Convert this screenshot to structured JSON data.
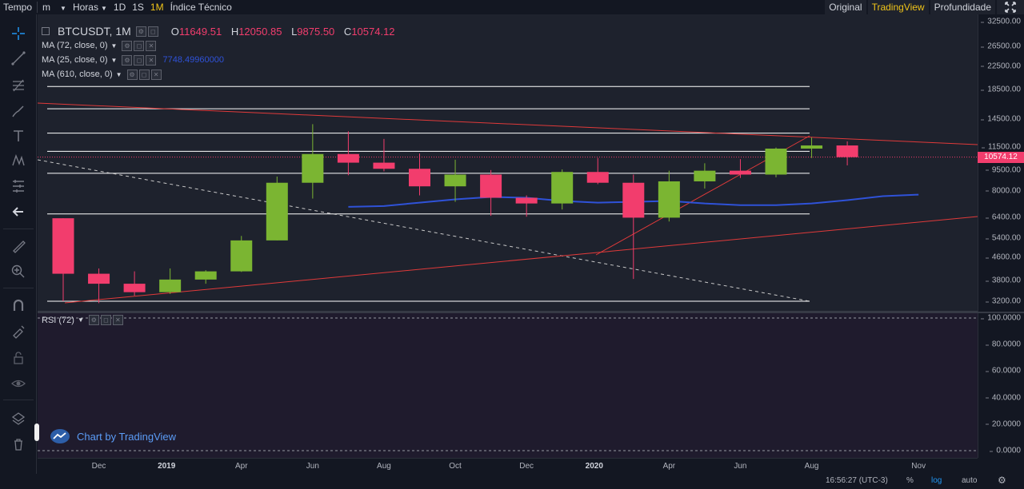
{
  "topbar": {
    "tempo_label": "Tempo",
    "minutes_label": "m",
    "hours_label": "Horas",
    "interval_1d": "1D",
    "interval_1s": "1S",
    "interval_1m": "1M",
    "indicator_label": "Índice Técnico",
    "view_original": "Original",
    "view_tradingview": "TradingView",
    "view_depth": "Profundidade",
    "active_interval": "1M",
    "active_view": "TradingView"
  },
  "sidebar": {
    "tools": [
      "crosshair-icon",
      "trend-line-icon",
      "fib-tools-icon",
      "brush-icon",
      "text-icon",
      "pattern-icon",
      "measure-icon",
      "back-arrow-icon",
      "ruler-icon",
      "zoom-in-icon",
      "magnet-icon",
      "lock-drawing-icon",
      "unlock-icon",
      "eye-icon",
      "layers-icon",
      "trash-icon"
    ]
  },
  "legend": {
    "symbol": "BTCUSDT, 1M",
    "open_label": "O",
    "open_value": "11649.51",
    "high_label": "H",
    "high_value": "12050.85",
    "low_label": "L",
    "low_value": "9875.50",
    "close_label": "C",
    "close_value": "10574.12",
    "ma1": "MA (72, close, 0)",
    "ma2": "MA (25, close, 0)",
    "ma2_value": "7748.49960000",
    "ma3": "MA (610, close, 0)",
    "rsi": "RSI (72)"
  },
  "price_scale": {
    "ticks": [
      "32500.00",
      "26500.00",
      "22500.00",
      "18500.00",
      "14500.00",
      "11500.00",
      "9500.00",
      "8000.00",
      "6400.00",
      "5400.00",
      "4600.00",
      "3800.00",
      "3200.00"
    ],
    "last_price": "10574.12",
    "log_scale": true
  },
  "rsi_scale": {
    "ticks": [
      "100.0000",
      "80.0000",
      "60.0000",
      "40.0000",
      "20.0000",
      "0.0000"
    ]
  },
  "time_axis": {
    "labels": [
      {
        "text": "Dec",
        "year": false
      },
      {
        "text": "2019",
        "year": true
      },
      {
        "text": "Apr",
        "year": false
      },
      {
        "text": "Jun",
        "year": false
      },
      {
        "text": "Aug",
        "year": false
      },
      {
        "text": "Oct",
        "year": false
      },
      {
        "text": "Dec",
        "year": false
      },
      {
        "text": "2020",
        "year": true
      },
      {
        "text": "Apr",
        "year": false
      },
      {
        "text": "Jun",
        "year": false
      },
      {
        "text": "Aug",
        "year": false
      },
      {
        "text": "Nov",
        "year": false
      }
    ]
  },
  "bottombar": {
    "clock": "16:56:27 (UTC-3)",
    "percent": "%",
    "log": "log",
    "auto": "auto"
  },
  "watermark": "Chart by TradingView",
  "colors": {
    "up": "#7bb532",
    "down": "#f23d6d",
    "ma_line": "#2f52d8",
    "trend": "#e03a3a",
    "level": "#ffffff",
    "accent": "#f0c419"
  },
  "chart_data": {
    "type": "candlestick",
    "title": "BTCUSDT, 1M",
    "log_scale": true,
    "candles": [
      {
        "date": "2018-11",
        "open": 6370,
        "high": 6370,
        "low": 3200,
        "close": 4020
      },
      {
        "date": "2018-12",
        "open": 4020,
        "high": 4200,
        "low": 3150,
        "close": 3700
      },
      {
        "date": "2019-01",
        "open": 3700,
        "high": 4100,
        "low": 3350,
        "close": 3450
      },
      {
        "date": "2019-02",
        "open": 3450,
        "high": 4200,
        "low": 3400,
        "close": 3830
      },
      {
        "date": "2019-03",
        "open": 3830,
        "high": 4140,
        "low": 3700,
        "close": 4100
      },
      {
        "date": "2019-04",
        "open": 4100,
        "high": 5500,
        "low": 4080,
        "close": 5300
      },
      {
        "date": "2019-05",
        "open": 5300,
        "high": 9000,
        "low": 5300,
        "close": 8550
      },
      {
        "date": "2019-06",
        "open": 8550,
        "high": 13900,
        "low": 7500,
        "close": 10850
      },
      {
        "date": "2019-07",
        "open": 10850,
        "high": 13100,
        "low": 9100,
        "close": 10100
      },
      {
        "date": "2019-08",
        "open": 10100,
        "high": 12300,
        "low": 9400,
        "close": 9600
      },
      {
        "date": "2019-09",
        "open": 9600,
        "high": 10900,
        "low": 7700,
        "close": 8300
      },
      {
        "date": "2019-10",
        "open": 8300,
        "high": 10350,
        "low": 7300,
        "close": 9150
      },
      {
        "date": "2019-11",
        "open": 9150,
        "high": 9500,
        "low": 6500,
        "close": 7550
      },
      {
        "date": "2019-12",
        "open": 7550,
        "high": 7700,
        "low": 6450,
        "close": 7200
      },
      {
        "date": "2020-01",
        "open": 7200,
        "high": 9550,
        "low": 6850,
        "close": 9350
      },
      {
        "date": "2020-02",
        "open": 9350,
        "high": 10500,
        "low": 8450,
        "close": 8550
      },
      {
        "date": "2020-03",
        "open": 8550,
        "high": 9150,
        "low": 3850,
        "close": 6400
      },
      {
        "date": "2020-04",
        "open": 6400,
        "high": 9450,
        "low": 6200,
        "close": 8650
      },
      {
        "date": "2020-05",
        "open": 8650,
        "high": 10050,
        "low": 8150,
        "close": 9450
      },
      {
        "date": "2020-06",
        "open": 9450,
        "high": 10400,
        "low": 8900,
        "close": 9150
      },
      {
        "date": "2020-07",
        "open": 9150,
        "high": 11450,
        "low": 8950,
        "close": 11350
      },
      {
        "date": "2020-08",
        "open": 11350,
        "high": 12450,
        "low": 10500,
        "close": 11650
      },
      {
        "date": "2020-09",
        "open": 11649.51,
        "high": 12050.85,
        "low": 9875.5,
        "close": 10574.12
      }
    ],
    "horizontal_levels": [
      19000,
      15800,
      12900,
      11100,
      9250,
      6600,
      3200
    ],
    "ma_series": {
      "name": "MA (25, close, 0)",
      "start_index": 8,
      "values": [
        7000,
        7050,
        7250,
        7450,
        7600,
        7550,
        7350,
        7250,
        7300,
        7350,
        7200,
        7100,
        7100,
        7200,
        7400,
        7650,
        7748.5
      ]
    },
    "rsi": {
      "name": "RSI (72)",
      "ylim": [
        0,
        100
      ]
    }
  }
}
